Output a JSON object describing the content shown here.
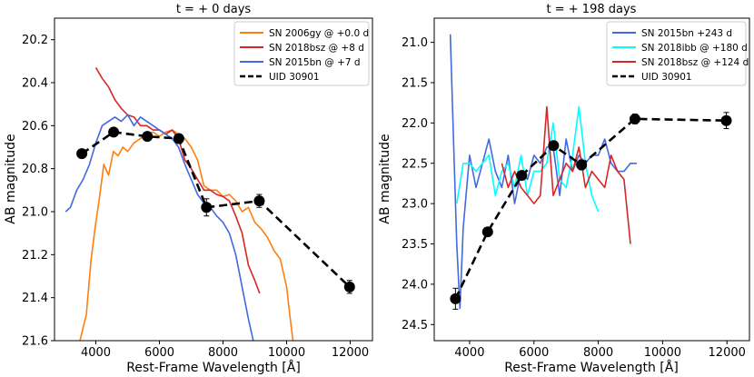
{
  "chart_data": [
    {
      "type": "line",
      "title": "t = + 0 days",
      "xlabel": "Rest-Frame Wavelength [Å]",
      "ylabel": "AB magnitude",
      "xlim": [
        2700,
        12700
      ],
      "ylim": [
        21.6,
        20.1
      ],
      "y_inverted": true,
      "xticks": [
        4000,
        6000,
        8000,
        10000,
        12000
      ],
      "xtick_labels": [
        "4000",
        "6000",
        "8000",
        "10000",
        "12000"
      ],
      "yticks": [
        20.2,
        20.4,
        20.6,
        20.8,
        21.0,
        21.2,
        21.4,
        21.6
      ],
      "ytick_labels": [
        "20.2",
        "20.4",
        "20.6",
        "20.8",
        "21.0",
        "21.2",
        "21.4",
        "21.6"
      ],
      "legend_position": "top-right",
      "series": [
        {
          "name": "SN 2006gy @ +0.0 d",
          "color": "#ff7f0e",
          "x": [
            3500,
            3700,
            3850,
            4000,
            4100,
            4250,
            4400,
            4550,
            4700,
            4850,
            5000,
            5200,
            5400,
            5600,
            5800,
            6000,
            6200,
            6400,
            6600,
            6800,
            7000,
            7200,
            7400,
            7600,
            7800,
            8000,
            8200,
            8400,
            8600,
            8800,
            9000,
            9200,
            9400,
            9600,
            9800,
            10000,
            10100,
            10200
          ],
          "y": [
            21.6,
            21.48,
            21.22,
            21.05,
            20.95,
            20.78,
            20.83,
            20.72,
            20.74,
            20.7,
            20.72,
            20.68,
            20.66,
            20.64,
            20.63,
            20.65,
            20.63,
            20.62,
            20.64,
            20.66,
            20.7,
            20.76,
            20.88,
            20.9,
            20.9,
            20.93,
            20.92,
            20.95,
            21.0,
            20.98,
            21.05,
            21.08,
            21.12,
            21.18,
            21.22,
            21.35,
            21.48,
            21.6
          ]
        },
        {
          "name": "SN 2018bsz @ +8 d",
          "color": "#d62728",
          "x": [
            4000,
            4200,
            4400,
            4600,
            4800,
            5000,
            5200,
            5400,
            5600,
            5800,
            6000,
            6200,
            6400,
            6600,
            6800,
            7000,
            7200,
            7400,
            7600,
            7800,
            8000,
            8200,
            8400,
            8600,
            8800,
            9000,
            9150
          ],
          "y": [
            20.33,
            20.38,
            20.42,
            20.48,
            20.52,
            20.55,
            20.56,
            20.6,
            20.6,
            20.62,
            20.62,
            20.64,
            20.62,
            20.66,
            20.76,
            20.8,
            20.85,
            20.9,
            20.9,
            20.92,
            20.93,
            20.95,
            21.02,
            21.1,
            21.25,
            21.32,
            21.38
          ]
        },
        {
          "name": "SN 2015bn @ +7 d",
          "color": "#4169e1",
          "x": [
            3050,
            3200,
            3400,
            3600,
            3800,
            4000,
            4200,
            4400,
            4600,
            4800,
            5000,
            5200,
            5400,
            5600,
            5800,
            6000,
            6200,
            6400,
            6600,
            6800,
            7000,
            7200,
            7400,
            7600,
            7800,
            8000,
            8200,
            8400,
            8600,
            8800,
            8950
          ],
          "y": [
            21.0,
            20.98,
            20.9,
            20.85,
            20.78,
            20.68,
            20.6,
            20.58,
            20.56,
            20.58,
            20.55,
            20.6,
            20.56,
            20.58,
            20.6,
            20.62,
            20.64,
            20.66,
            20.7,
            20.78,
            20.85,
            20.92,
            20.96,
            20.98,
            21.02,
            21.05,
            21.1,
            21.2,
            21.35,
            21.5,
            21.6
          ]
        }
      ],
      "photometry": {
        "name": "UID 30901",
        "x": [
          3560,
          4560,
          5620,
          6610,
          7480,
          9140,
          11980
        ],
        "y": [
          20.73,
          20.63,
          20.65,
          20.66,
          20.98,
          20.95,
          21.35
        ],
        "yerr": [
          0.015,
          0.015,
          0.015,
          0.02,
          0.04,
          0.03,
          0.03
        ]
      }
    },
    {
      "type": "line",
      "title": "t = + 198 days",
      "xlabel": "Rest-Frame Wavelength [Å]",
      "ylabel": "AB magnitude",
      "xlim": [
        2900,
        12700
      ],
      "ylim": [
        24.7,
        20.7
      ],
      "y_inverted": true,
      "xticks": [
        4000,
        6000,
        8000,
        10000,
        12000
      ],
      "xtick_labels": [
        "4000",
        "6000",
        "8000",
        "10000",
        "12000"
      ],
      "yticks": [
        21.0,
        21.5,
        22.0,
        22.5,
        23.0,
        23.5,
        24.0,
        24.5
      ],
      "ytick_labels": [
        "21.0",
        "21.5",
        "22.0",
        "22.5",
        "23.0",
        "23.5",
        "24.0",
        "24.5"
      ],
      "legend_position": "top-right",
      "series": [
        {
          "name": "SN 2015bn +243 d",
          "color": "#4169e1",
          "x": [
            3400,
            3500,
            3600,
            3700,
            3800,
            4000,
            4200,
            4400,
            4600,
            4800,
            5000,
            5200,
            5400,
            5600,
            5800,
            6000,
            6200,
            6400,
            6600,
            6800,
            7000,
            7200,
            7400,
            7600,
            7800,
            8000,
            8200,
            8400,
            8600,
            8800,
            9000,
            9200
          ],
          "y": [
            20.9,
            22.2,
            23.5,
            24.3,
            23.3,
            22.4,
            22.8,
            22.5,
            22.2,
            22.6,
            22.8,
            22.4,
            23.0,
            22.6,
            22.7,
            22.4,
            22.5,
            22.3,
            22.3,
            22.9,
            22.2,
            22.6,
            22.4,
            22.5,
            22.4,
            22.4,
            22.2,
            22.5,
            22.6,
            22.6,
            22.5,
            22.5
          ]
        },
        {
          "name": "SN 2018ibb @ +180 d",
          "color": "#00ffff",
          "x": [
            3600,
            3800,
            4000,
            4200,
            4400,
            4600,
            4800,
            5000,
            5200,
            5400,
            5600,
            5800,
            6000,
            6200,
            6400,
            6600,
            6800,
            7000,
            7200,
            7400,
            7600,
            7800,
            8000
          ],
          "y": [
            23.0,
            22.5,
            22.5,
            22.6,
            22.5,
            22.4,
            22.9,
            22.6,
            22.5,
            22.8,
            22.4,
            22.9,
            22.6,
            22.6,
            22.5,
            22.0,
            22.7,
            22.8,
            22.4,
            21.8,
            22.5,
            22.9,
            23.1
          ]
        },
        {
          "name": "SN 2018bsz @ +124 d",
          "color": "#d62728",
          "x": [
            5000,
            5200,
            5400,
            5600,
            5800,
            6000,
            6200,
            6400,
            6600,
            6800,
            7000,
            7200,
            7400,
            7600,
            7800,
            8000,
            8200,
            8400,
            8600,
            8800,
            9000
          ],
          "y": [
            22.5,
            22.8,
            22.6,
            22.8,
            22.9,
            23.0,
            22.9,
            21.8,
            22.9,
            22.7,
            22.5,
            22.6,
            22.3,
            22.8,
            22.6,
            22.7,
            22.8,
            22.4,
            22.6,
            22.7,
            23.5
          ]
        }
      ],
      "photometry": {
        "name": "UID 30901",
        "x": [
          3560,
          4560,
          5620,
          6610,
          7480,
          9140,
          11980
        ],
        "y": [
          24.18,
          23.35,
          22.65,
          22.28,
          22.52,
          21.95,
          21.97
        ],
        "yerr": [
          0.13,
          0.05,
          0.04,
          0.05,
          0.06,
          0.06,
          0.1
        ]
      }
    }
  ]
}
